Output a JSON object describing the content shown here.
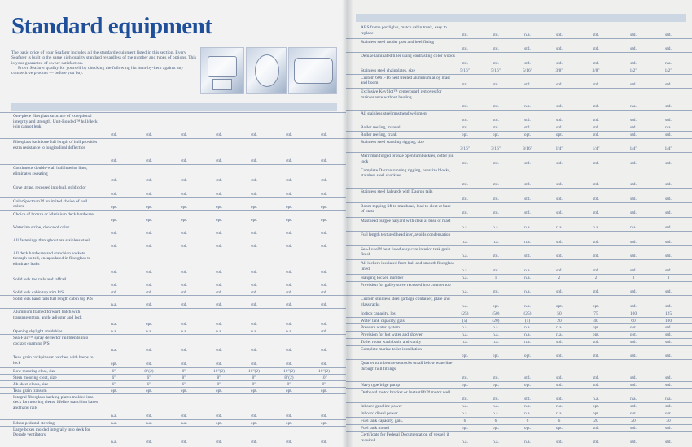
{
  "left_page": {
    "title": "Standard equipment",
    "intro_paragraphs": [
      "The basic price of your Seafarer includes all the standard equipment listed in this section. Every Seafarer is built to the same high quality standard regardless of the number and types of options. This is your guarantee of owner satisfaction.",
      "Prove Seafarer quality for yourself by checking the following list item-by-item against any competitive product — before you buy."
    ],
    "rows": [
      {
        "label": "One-piece fiberglass structure of exceptional integrity and strength. Unit-Bonded™ hull/deck join cannot leak",
        "values": [
          "std.",
          "std.",
          "std.",
          "std.",
          "std.",
          "std.",
          "std."
        ]
      },
      {
        "label": "Fiberglass backbone full length of hull provides extra resistance to longitudinal deflection",
        "values": [
          "std.",
          "std.",
          "std.",
          "std.",
          "std.",
          "std.",
          "std."
        ]
      },
      {
        "label": "Continuous double-wall hull/interior liner, eliminates sweating",
        "values": [
          "std.",
          "std.",
          "std.",
          "std.",
          "std.",
          "std.",
          "std."
        ]
      },
      {
        "label": "Cove stripe, recessed into hull, gold color",
        "values": [
          "std.",
          "std.",
          "std.",
          "std.",
          "std.",
          "std.",
          "std."
        ]
      },
      {
        "label": "ColorSpectrum™ unlimited choice of hull colors",
        "values": [
          "opt.",
          "opt.",
          "opt.",
          "opt.",
          "opt.",
          "opt.",
          "opt."
        ]
      },
      {
        "label": "Choice of bronze or Marinium deck hardware",
        "values": [
          "opt.",
          "opt.",
          "opt.",
          "opt.",
          "opt.",
          "opt.",
          "opt."
        ]
      },
      {
        "label": "Waterline stripe, choice of color",
        "values": [
          "std.",
          "std.",
          "std.",
          "std.",
          "std.",
          "std.",
          "std."
        ]
      },
      {
        "label": "All fastenings throughout are stainless steel",
        "values": [
          "std.",
          "std.",
          "std.",
          "std.",
          "std.",
          "std.",
          "std."
        ]
      },
      {
        "label": "All deck hardware and stanchion sockets through bolted, encapsulated in fiberglass to eliminate leaks",
        "values": [
          "std.",
          "std.",
          "std.",
          "std.",
          "std.",
          "std.",
          "std."
        ]
      },
      {
        "label": "Solid teak toe rails and taffrail",
        "values": [
          "std.",
          "std.",
          "std.",
          "std.",
          "std.",
          "std.",
          "std."
        ]
      },
      {
        "label": "Solid teak cabin top trim P/S",
        "values": [
          "std.",
          "std.",
          "std.",
          "std.",
          "std.",
          "std.",
          "std."
        ]
      },
      {
        "label": "Solid teak hand rails full length cabin top P/S",
        "values": [
          "n.a.",
          "std.",
          "std.",
          "std.",
          "std.",
          "std.",
          "std."
        ]
      },
      {
        "label": "Aluminum framed forward hatch with transparent top, angle adjuster and lock",
        "values": [
          "n.a.",
          "opt.",
          "std.",
          "std.",
          "std.",
          "std.",
          "std."
        ]
      },
      {
        "label": "Opening skylight amidships",
        "values": [
          "n.a.",
          "n.a.",
          "n.a.",
          "n.a.",
          "n.a.",
          "n.a.",
          "std."
        ]
      },
      {
        "label": "Sea-Flair™ spray deflector rail blends into cockpit coaming P/S",
        "values": [
          "n.a.",
          "std.",
          "std.",
          "std.",
          "std.",
          "std.",
          "std."
        ]
      },
      {
        "label": "Teak grain cockpit seat hatches, with hasps to lock",
        "values": [
          "opt.",
          "std.",
          "std.",
          "std.",
          "std.",
          "std.",
          "std."
        ]
      },
      {
        "label": "Bow mooring cleat, size",
        "values": [
          "6\"",
          "8\"(2)",
          "8\"",
          "10\"(2)",
          "10\"(2)",
          "10\"(2)",
          "10\"(2)"
        ]
      },
      {
        "label": "Stern mooring cleat, size",
        "values": [
          "6\"",
          "6\"",
          "8\"",
          "8\"",
          "8\"",
          "8\"(2)",
          "10\""
        ]
      },
      {
        "label": "Jib sheet cleats, size",
        "values": [
          "6\"",
          "6\"",
          "6\"",
          "8\"",
          "8\"",
          "8\"",
          "8\""
        ]
      },
      {
        "label": "Teak grain transom",
        "values": [
          "opt.",
          "opt.",
          "opt.",
          "opt.",
          "opt.",
          "opt.",
          "opt."
        ]
      },
      {
        "label": "Integral fiberglass backing plates molded into deck for mooring cleats, lifeline stanchion bases and hand rails",
        "values": [
          "n.a.",
          "std.",
          "std.",
          "std.",
          "std.",
          "std.",
          "std."
        ]
      },
      {
        "label": "Edson pedestal steering",
        "values": [
          "n.a.",
          "n.a.",
          "n.a.",
          "opt.",
          "opt.",
          "opt.",
          "opt."
        ]
      },
      {
        "label": "Large boxes molded integrally into deck for Dorade ventilators",
        "values": [
          "n.a.",
          "std.",
          "std.",
          "std.",
          "std.",
          "std.",
          "std."
        ]
      }
    ]
  },
  "right_page": {
    "rows": [
      {
        "label": "ABS frame portlights, match cabin trunk, easy to replace",
        "values": [
          "std.",
          "std.",
          "n.a.",
          "std.",
          "std.",
          "std.",
          "std."
        ]
      },
      {
        "label": "Stainless steel rudder post and heel fitting",
        "values": [
          "std.",
          "std.",
          "std.",
          "std.",
          "std.",
          "std.",
          "std."
        ]
      },
      {
        "label": "Deluxe laminated tiller using contrasting color woods",
        "values": [
          "std.",
          "std.",
          "std.",
          "std.",
          "std.",
          "std.",
          "n.a."
        ]
      },
      {
        "label": "Stainless steel chainplates, size",
        "values": [
          "5/16\"",
          "5/16\"",
          "5/16\"",
          "3/8\"",
          "3/8\"",
          "1/2\"",
          "1/2\""
        ]
      },
      {
        "label": "Custom 6061-T6 heat treated aluminum alloy mast and boom",
        "values": [
          "std.",
          "std.",
          "std.",
          "std.",
          "std.",
          "std.",
          "std."
        ]
      },
      {
        "label": "Exclusive KeySlot™ centerboard removes for maintenance without hauling",
        "values": [
          "std.",
          "std.",
          "n.a.",
          "std.",
          "std.",
          "n.a.",
          "std."
        ]
      },
      {
        "label": "All stainless steel masthead weldment",
        "values": [
          "std.",
          "std.",
          "std.",
          "std.",
          "std.",
          "std.",
          "std."
        ]
      },
      {
        "label": "Roller reefing, manual",
        "values": [
          "std.",
          "std.",
          "std.",
          "std.",
          "std.",
          "std.",
          "n.a."
        ]
      },
      {
        "label": "Roller reefing, crank",
        "values": [
          "opt.",
          "opt.",
          "opt.",
          "opt.",
          "std.",
          "std.",
          "std."
        ]
      },
      {
        "label": "Stainless steel standing rigging, size",
        "values": [
          "3/16\"",
          "3/16\"",
          "3/16\"",
          "1/4\"",
          "1/4\"",
          "1/4\"",
          "1/4\""
        ]
      },
      {
        "label": "Merriman forged bronze open turnbuckles, cotter pin lock",
        "values": [
          "std.",
          "std.",
          "std.",
          "std.",
          "std.",
          "std.",
          "std."
        ]
      },
      {
        "label": "Complete Dacron running rigging, oversize blocks, stainless steel shackles",
        "values": [
          "std.",
          "std.",
          "std.",
          "std.",
          "std.",
          "std.",
          "std."
        ]
      },
      {
        "label": "Stainless steel halyards with Dacron tails",
        "values": [
          "std.",
          "std.",
          "std.",
          "std.",
          "std.",
          "std.",
          "std."
        ]
      },
      {
        "label": "Boom topping lift to masthead, lead to cleat at base of mast",
        "values": [
          "std.",
          "std.",
          "std.",
          "std.",
          "std.",
          "std.",
          "std."
        ]
      },
      {
        "label": "Masthead burgee halyard with cleat at base of mast",
        "values": [
          "n.a.",
          "n.a.",
          "n.a.",
          "n.a.",
          "n.a.",
          "n.a.",
          "std."
        ]
      },
      {
        "label": "Full length textured headliner, avoids condensation",
        "values": [
          "n.a.",
          "n.a.",
          "n.a.",
          "std.",
          "std.",
          "std.",
          "std."
        ]
      },
      {
        "label": "Sea-Luxe™ heat fused easy care interior teak grain finish",
        "values": [
          "n.a.",
          "std.",
          "std.",
          "std.",
          "std.",
          "std.",
          "std."
        ]
      },
      {
        "label": "All lockers insulated from hull and smooth fiberglass lined",
        "values": [
          "n.a.",
          "std.",
          "n.a.",
          "std.",
          "std.",
          "std.",
          "std."
        ]
      },
      {
        "label": "Hanging locker, number",
        "values": [
          "n.a.",
          "1",
          "n.a.",
          "2",
          "2",
          "3",
          "3"
        ]
      },
      {
        "label": "Provision for galley stove recessed into counter top",
        "values": [
          "n.a.",
          "std.",
          "n.a.",
          "std.",
          "std.",
          "std.",
          "std."
        ]
      },
      {
        "label": "Custom stainless steel garbage container, plate and glass racks",
        "values": [
          "n.a.",
          "opt.",
          "n.a.",
          "opt.",
          "opt.",
          "std.",
          "std."
        ]
      },
      {
        "label": "Icebox capacity, lbs.",
        "values": [
          "(25)",
          "(50)",
          "(25)",
          "50",
          "75",
          "100",
          "125"
        ]
      },
      {
        "label": "Water tank capacity, gals.",
        "values": [
          "(5)",
          "(20)",
          "(5)",
          "20",
          "40",
          "60",
          "100"
        ]
      },
      {
        "label": "Pressure water system",
        "values": [
          "n.a.",
          "n.a.",
          "n.a.",
          "n.a.",
          "opt.",
          "opt.",
          "std."
        ]
      },
      {
        "label": "Provision for hot water and shower",
        "values": [
          "n.a.",
          "n.a.",
          "n.a.",
          "n.a.",
          "opt.",
          "opt.",
          "std."
        ]
      },
      {
        "label": "Toilet room wash basin and vanity",
        "values": [
          "n.a.",
          "n.a.",
          "n.a.",
          "std.",
          "std.",
          "std.",
          "std."
        ]
      },
      {
        "label": "Complete marine toilet installation",
        "values": [
          "opt.",
          "opt.",
          "opt.",
          "std.",
          "std.",
          "std.",
          "std."
        ]
      },
      {
        "label": "Quarter turn bronze seacocks on all below waterline through hull fittings",
        "values": [
          "std.",
          "std.",
          "std.",
          "std.",
          "std.",
          "std.",
          "std."
        ]
      },
      {
        "label": "Navy type bilge pump",
        "values": [
          "opt.",
          "opt.",
          "opt.",
          "std.",
          "std.",
          "std.",
          "std."
        ]
      },
      {
        "label": "Outboard motor bracket or Instantlift™ motor well",
        "values": [
          "std.",
          "std.",
          "std.",
          "std.",
          "n.a.",
          "n.a.",
          "n.a."
        ]
      },
      {
        "label": "Inboard gasoline power",
        "values": [
          "n.a.",
          "n.a.",
          "n.a.",
          "n.a.",
          "opt.",
          "std.",
          "std."
        ]
      },
      {
        "label": "Inboard diesel power",
        "values": [
          "n.a.",
          "n.a.",
          "n.a.",
          "n.a.",
          "opt.",
          "opt.",
          "opt."
        ]
      },
      {
        "label": "Fuel tank capacity, gals.",
        "values": [
          "6",
          "6",
          "6",
          "6",
          "20",
          "20",
          "30"
        ]
      },
      {
        "label": "Fuel tank monel",
        "values": [
          "opt.",
          "opt.",
          "opt.",
          "opt.",
          "std.",
          "std.",
          "std."
        ]
      },
      {
        "label": "Certificate for Federal Documentation of vessel, if required",
        "values": [
          "n.a.",
          "n.a.",
          "n.a.",
          "std.",
          "std.",
          "std.",
          "std."
        ]
      }
    ]
  },
  "colors": {
    "title": "#1f4f9a",
    "text": "#3f5477",
    "rule": "#9caac0",
    "band": "#cdd6e3"
  }
}
